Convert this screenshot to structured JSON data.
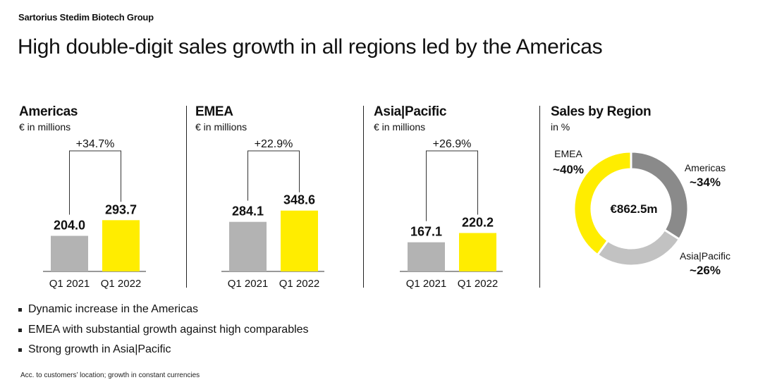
{
  "header": {
    "company": "Sartorius Stedim Biotech Group",
    "title": "High double-digit sales growth in all regions led by the Americas"
  },
  "colors": {
    "prior": "#b3b3b3",
    "current": "#ffed00",
    "axis": "#333333",
    "americas": "#8a8a8a",
    "asia": "#c2c2c2",
    "emea": "#ffed00"
  },
  "chart_data": [
    {
      "type": "bar",
      "title": "Americas",
      "subtitle": "€ in millions",
      "categories": [
        "Q1 2021",
        "Q1 2022"
      ],
      "values": [
        204.0,
        293.7
      ],
      "value_labels": [
        "204.0",
        "293.7"
      ],
      "growth_label": "+34.7%"
    },
    {
      "type": "bar",
      "title": "EMEA",
      "subtitle": "€ in millions",
      "categories": [
        "Q1 2021",
        "Q1 2022"
      ],
      "values": [
        284.1,
        348.6
      ],
      "value_labels": [
        "284.1",
        "348.6"
      ],
      "growth_label": "+22.9%"
    },
    {
      "type": "bar",
      "title": "Asia|Pacific",
      "subtitle": "€ in millions",
      "categories": [
        "Q1 2021",
        "Q1 2022"
      ],
      "values": [
        167.1,
        220.2
      ],
      "value_labels": [
        "167.1",
        "220.2"
      ],
      "growth_label": "+26.9%"
    },
    {
      "type": "pie",
      "title": "Sales by Region",
      "subtitle": "in %",
      "center_label": "€862.5m",
      "slices": [
        {
          "name": "Americas",
          "value": 34,
          "label": "~34%"
        },
        {
          "name": "Asia|Pacific",
          "value": 26,
          "label": "~26%"
        },
        {
          "name": "EMEA",
          "value": 40,
          "label": "~40%"
        }
      ]
    }
  ],
  "bullets": [
    "Dynamic increase in the Americas",
    "EMEA with substantial growth against high comparables",
    "Strong growth in Asia|Pacific"
  ],
  "footnote": "Acc. to customers’ location; growth in constant currencies"
}
